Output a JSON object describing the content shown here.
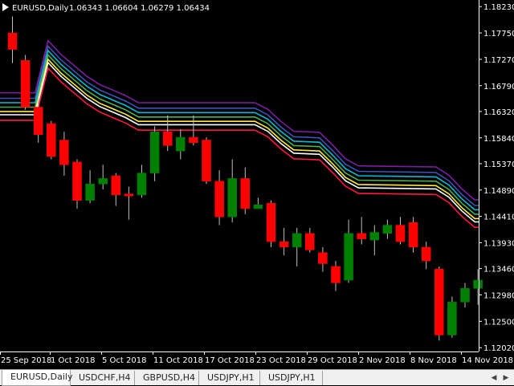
{
  "window": {
    "symbol_label": "EURUSD,Daily",
    "ohlc_label": "1.06343 1.06604 1.06279 1.06434"
  },
  "tabs": [
    {
      "label": "EURUSD,Daily",
      "active": true
    },
    {
      "label": "USDCHF,H4",
      "active": false
    },
    {
      "label": "GBPUSD,H4",
      "active": false
    },
    {
      "label": "USDJPY,H1",
      "active": false
    },
    {
      "label": "USDJPY,H1",
      "active": false
    }
  ],
  "tab_scroll": {
    "left_icon": "arrow-left-icon",
    "right_icon": "arrow-right-icon",
    "left": "◀",
    "right": "▶"
  },
  "colors": {
    "background": "#000000",
    "bull": "#008000",
    "bear": "#ff0000",
    "wick": "#c0c0c0",
    "bands": [
      "#7b1fa2",
      "#3f51b5",
      "#00bcd4",
      "#4caf50",
      "#ffeb3b",
      "#ffffff",
      "#ff1744"
    ]
  },
  "chart_data": {
    "type": "candlestick",
    "symbol": "EURUSD",
    "timeframe": "Daily",
    "y_ticks": [
      "1.18230",
      "1.17750",
      "1.17270",
      "1.16790",
      "1.16320",
      "1.15840",
      "1.15370",
      "1.14890",
      "1.14410",
      "1.13930",
      "1.13460",
      "1.12980",
      "1.12500",
      "1.12020"
    ],
    "ylim": [
      1.1195,
      1.1835
    ],
    "x_ticks": [
      "25 Sep 2018",
      "1 Oct 2018",
      "5 Oct 2018",
      "11 Oct 2018",
      "17 Oct 2018",
      "23 Oct 2018",
      "29 Oct 2018",
      "2 Nov 2018",
      "8 Nov 2018",
      "14 Nov 2018"
    ],
    "candles": [
      {
        "o": 1.1775,
        "h": 1.1805,
        "l": 1.172,
        "c": 1.1745
      },
      {
        "o": 1.1725,
        "h": 1.1735,
        "l": 1.1635,
        "c": 1.164
      },
      {
        "o": 1.164,
        "h": 1.166,
        "l": 1.1575,
        "c": 1.159
      },
      {
        "o": 1.161,
        "h": 1.1615,
        "l": 1.1545,
        "c": 1.155
      },
      {
        "o": 1.158,
        "h": 1.1595,
        "l": 1.1515,
        "c": 1.1535
      },
      {
        "o": 1.154,
        "h": 1.1545,
        "l": 1.1455,
        "c": 1.147
      },
      {
        "o": 1.147,
        "h": 1.1525,
        "l": 1.1465,
        "c": 1.15
      },
      {
        "o": 1.15,
        "h": 1.1535,
        "l": 1.149,
        "c": 1.151
      },
      {
        "o": 1.1515,
        "h": 1.152,
        "l": 1.146,
        "c": 1.148
      },
      {
        "o": 1.1482,
        "h": 1.1495,
        "l": 1.1435,
        "c": 1.1478
      },
      {
        "o": 1.148,
        "h": 1.1535,
        "l": 1.1475,
        "c": 1.152
      },
      {
        "o": 1.152,
        "h": 1.1605,
        "l": 1.1505,
        "c": 1.1595
      },
      {
        "o": 1.1595,
        "h": 1.1625,
        "l": 1.156,
        "c": 1.157
      },
      {
        "o": 1.156,
        "h": 1.16,
        "l": 1.1545,
        "c": 1.1585
      },
      {
        "o": 1.1585,
        "h": 1.1625,
        "l": 1.157,
        "c": 1.1575
      },
      {
        "o": 1.158,
        "h": 1.1585,
        "l": 1.15,
        "c": 1.1505
      },
      {
        "o": 1.1505,
        "h": 1.1525,
        "l": 1.1425,
        "c": 1.144
      },
      {
        "o": 1.144,
        "h": 1.1545,
        "l": 1.143,
        "c": 1.151
      },
      {
        "o": 1.151,
        "h": 1.153,
        "l": 1.1445,
        "c": 1.1455
      },
      {
        "o": 1.1455,
        "h": 1.1475,
        "l": 1.1455,
        "c": 1.1462
      },
      {
        "o": 1.1465,
        "h": 1.147,
        "l": 1.1385,
        "c": 1.1395
      },
      {
        "o": 1.1395,
        "h": 1.142,
        "l": 1.137,
        "c": 1.1385
      },
      {
        "o": 1.1385,
        "h": 1.142,
        "l": 1.135,
        "c": 1.141
      },
      {
        "o": 1.141,
        "h": 1.142,
        "l": 1.1375,
        "c": 1.138
      },
      {
        "o": 1.1375,
        "h": 1.1385,
        "l": 1.134,
        "c": 1.1355
      },
      {
        "o": 1.135,
        "h": 1.136,
        "l": 1.1305,
        "c": 1.132
      },
      {
        "o": 1.1325,
        "h": 1.1435,
        "l": 1.132,
        "c": 1.141
      },
      {
        "o": 1.141,
        "h": 1.144,
        "l": 1.139,
        "c": 1.14
      },
      {
        "o": 1.1398,
        "h": 1.1425,
        "l": 1.137,
        "c": 1.1412
      },
      {
        "o": 1.141,
        "h": 1.1435,
        "l": 1.14,
        "c": 1.1425
      },
      {
        "o": 1.1425,
        "h": 1.144,
        "l": 1.139,
        "c": 1.1395
      },
      {
        "o": 1.143,
        "h": 1.144,
        "l": 1.1375,
        "c": 1.1385
      },
      {
        "o": 1.1385,
        "h": 1.1395,
        "l": 1.1345,
        "c": 1.136
      },
      {
        "o": 1.1345,
        "h": 1.135,
        "l": 1.1215,
        "c": 1.1225
      },
      {
        "o": 1.1225,
        "h": 1.1295,
        "l": 1.122,
        "c": 1.1285
      },
      {
        "o": 1.1285,
        "h": 1.132,
        "l": 1.1275,
        "c": 1.131
      },
      {
        "o": 1.131,
        "h": 1.1345,
        "l": 1.128,
        "c": 1.1325
      }
    ],
    "bands": {
      "names": [],
      "offsets": [
        0.0046,
        0.0036,
        0.0028,
        0.002,
        0.0012,
        0.0006,
        -0.0004
      ],
      "base": [
        {
          "i": -1,
          "v": 1.162
        },
        {
          "i": 2,
          "v": 1.162
        },
        {
          "i": 3,
          "v": 1.1715
        },
        {
          "i": 4,
          "v": 1.169
        },
        {
          "i": 5,
          "v": 1.167
        },
        {
          "i": 6,
          "v": 1.165
        },
        {
          "i": 7,
          "v": 1.1635
        },
        {
          "i": 8,
          "v": 1.1625
        },
        {
          "i": 9,
          "v": 1.1615
        },
        {
          "i": 10,
          "v": 1.1602
        },
        {
          "i": 19,
          "v": 1.1602
        },
        {
          "i": 20,
          "v": 1.159
        },
        {
          "i": 21,
          "v": 1.1568
        },
        {
          "i": 22,
          "v": 1.155
        },
        {
          "i": 24,
          "v": 1.1548
        },
        {
          "i": 25,
          "v": 1.1525
        },
        {
          "i": 26,
          "v": 1.15
        },
        {
          "i": 27,
          "v": 1.1487
        },
        {
          "i": 33,
          "v": 1.1485
        },
        {
          "i": 34,
          "v": 1.147
        },
        {
          "i": 35,
          "v": 1.1445
        },
        {
          "i": 36,
          "v": 1.1425
        },
        {
          "i": 38,
          "v": 1.1425
        }
      ]
    }
  }
}
